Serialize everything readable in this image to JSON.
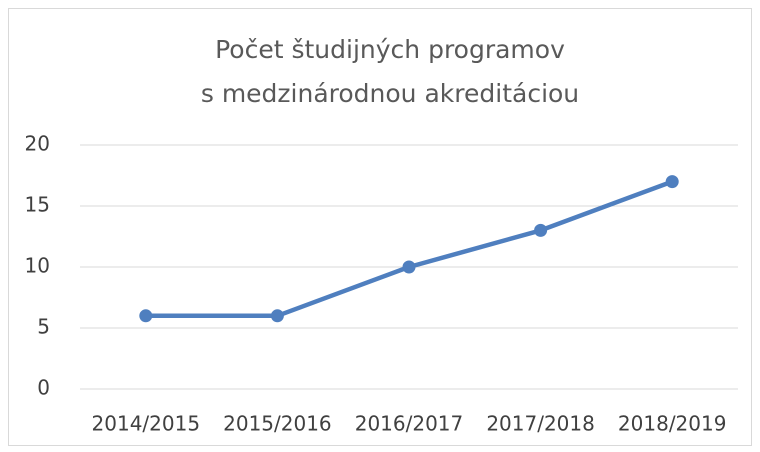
{
  "chart_data": {
    "type": "line",
    "title": [
      "Počet študijných programov",
      "s medzinárodnou akreditáciou"
    ],
    "categories": [
      "2014/2015",
      "2015/2016",
      "2016/2017",
      "2017/2018",
      "2018/2019"
    ],
    "values": [
      6,
      6,
      10,
      13,
      17
    ],
    "color": "#4f7fbf",
    "ylim": [
      0,
      20
    ],
    "yticks": [
      0,
      5,
      10,
      15,
      20
    ],
    "grid": true
  }
}
